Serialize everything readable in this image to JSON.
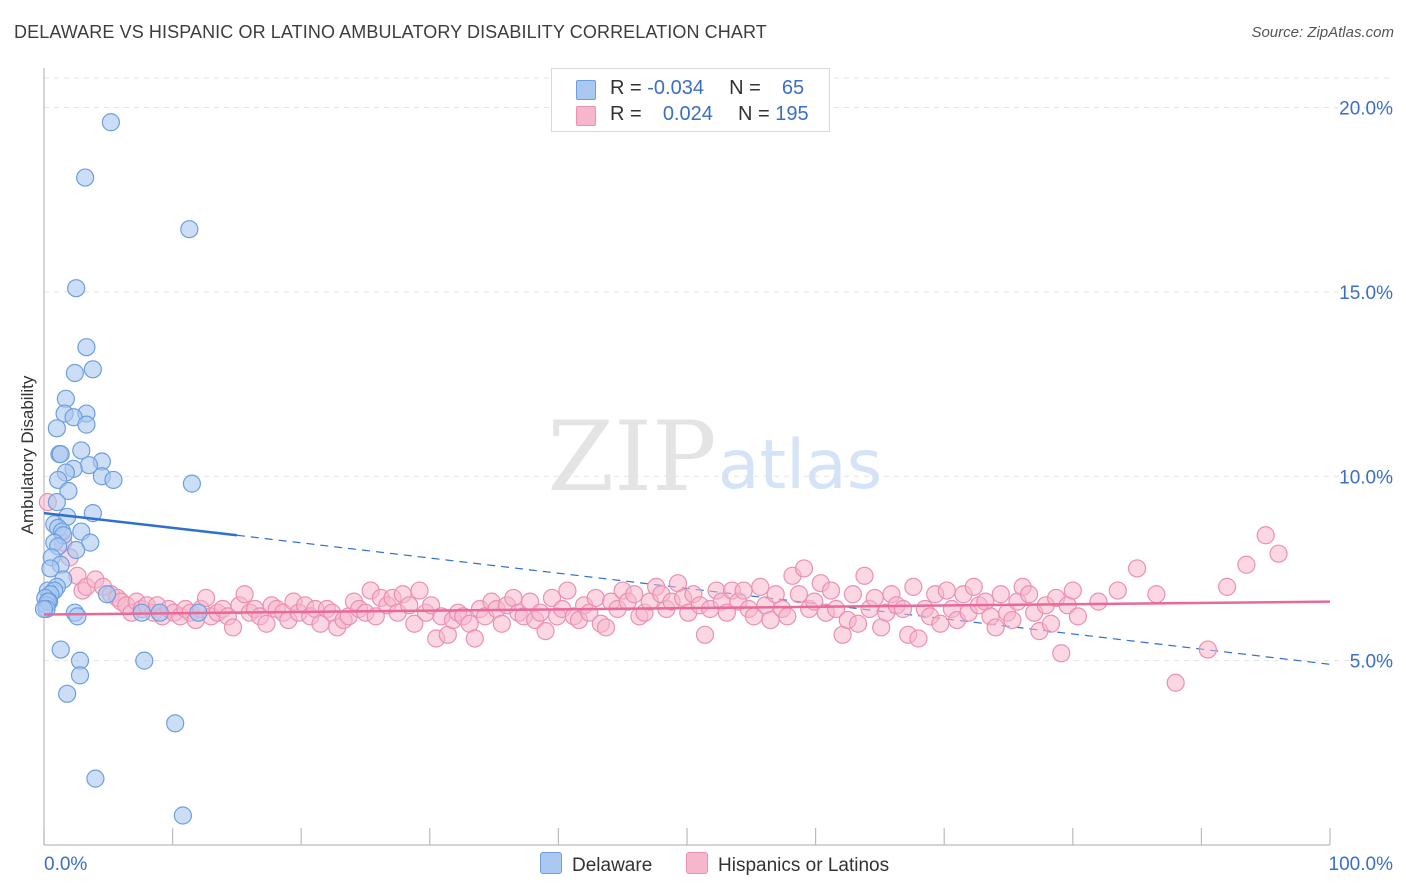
{
  "title": "DELAWARE VS HISPANIC OR LATINO AMBULATORY DISABILITY CORRELATION CHART",
  "source": "Source: ZipAtlas.com",
  "watermark": {
    "zip": "ZIP",
    "atlas": "atlas"
  },
  "legend": {
    "delaware": {
      "r_label": "R =",
      "r_value": "-0.034",
      "n_label": "N =",
      "n_value": "65"
    },
    "hispanic": {
      "r_label": "R =",
      "r_value": "0.024",
      "n_label": "N =",
      "n_value": "195"
    }
  },
  "bottom_legend": {
    "delaware": "Delaware",
    "hispanic": "Hispanics or Latinos"
  },
  "colors": {
    "delaware_fill": "#aac8f0",
    "delaware_stroke": "#6d9ee0",
    "delaware_line": "#2f6fce",
    "hispanic_fill": "#f6b7cc",
    "hispanic_stroke": "#ec8fb0",
    "hispanic_line": "#e8699a",
    "axis_text": "#3a6fc4",
    "grid": "#e3e3e3"
  },
  "chart_data": {
    "type": "scatter",
    "title": "DELAWARE VS HISPANIC OR LATINO AMBULATORY DISABILITY CORRELATION CHART",
    "xlabel": "",
    "ylabel": "Ambulatory Disability",
    "xlim": [
      0,
      100
    ],
    "ylim": [
      0,
      20.8
    ],
    "x_tick_labels": {
      "left": "0.0%",
      "right": "100.0%"
    },
    "y_ticks": [
      {
        "value": 5,
        "label": "5.0%"
      },
      {
        "value": 10,
        "label": "10.0%"
      },
      {
        "value": 15,
        "label": "15.0%"
      },
      {
        "value": 20,
        "label": "20.0%"
      }
    ],
    "series": [
      {
        "name": "Delaware",
        "r": -0.034,
        "n": 65,
        "trend": {
          "x0": 0,
          "y0": 9.0,
          "x1": 15,
          "y1": 8.4,
          "dash_to_x": 100,
          "dash_to_y": 4.9
        },
        "points": [
          [
            5.2,
            19.6
          ],
          [
            3.2,
            18.1
          ],
          [
            11.3,
            16.7
          ],
          [
            2.5,
            15.1
          ],
          [
            3.3,
            13.5
          ],
          [
            3.8,
            12.9
          ],
          [
            2.4,
            12.8
          ],
          [
            1.7,
            12.1
          ],
          [
            1.6,
            11.7
          ],
          [
            3.3,
            11.7
          ],
          [
            2.3,
            11.6
          ],
          [
            3.3,
            11.4
          ],
          [
            1.0,
            11.3
          ],
          [
            2.9,
            10.7
          ],
          [
            1.2,
            10.6
          ],
          [
            1.3,
            10.6
          ],
          [
            4.5,
            10.4
          ],
          [
            3.5,
            10.3
          ],
          [
            2.3,
            10.2
          ],
          [
            1.7,
            10.1
          ],
          [
            4.5,
            10.0
          ],
          [
            5.4,
            9.9
          ],
          [
            1.1,
            9.9
          ],
          [
            11.5,
            9.8
          ],
          [
            1.9,
            9.6
          ],
          [
            1.0,
            9.3
          ],
          [
            3.8,
            9.0
          ],
          [
            1.8,
            8.9
          ],
          [
            0.8,
            8.7
          ],
          [
            1.1,
            8.6
          ],
          [
            1.4,
            8.5
          ],
          [
            2.9,
            8.5
          ],
          [
            1.5,
            8.4
          ],
          [
            0.8,
            8.2
          ],
          [
            3.6,
            8.2
          ],
          [
            1.1,
            8.1
          ],
          [
            2.5,
            8.0
          ],
          [
            0.6,
            7.8
          ],
          [
            1.3,
            7.6
          ],
          [
            0.5,
            7.5
          ],
          [
            1.5,
            7.2
          ],
          [
            1.0,
            7.0
          ],
          [
            0.3,
            6.9
          ],
          [
            0.8,
            6.9
          ],
          [
            4.9,
            6.8
          ],
          [
            0.5,
            6.8
          ],
          [
            0.1,
            6.7
          ],
          [
            0.4,
            6.6
          ],
          [
            0.2,
            6.5
          ],
          [
            0.3,
            6.6
          ],
          [
            0.2,
            6.4
          ],
          [
            0.0,
            6.4
          ],
          [
            9.0,
            6.3
          ],
          [
            2.4,
            6.3
          ],
          [
            2.6,
            6.2
          ],
          [
            7.6,
            6.3
          ],
          [
            12.0,
            6.3
          ],
          [
            1.3,
            5.3
          ],
          [
            7.8,
            5.0
          ],
          [
            2.8,
            5.0
          ],
          [
            2.8,
            4.6
          ],
          [
            1.8,
            4.1
          ],
          [
            10.2,
            3.3
          ],
          [
            4.0,
            1.8
          ],
          [
            10.8,
            0.8
          ]
        ]
      },
      {
        "name": "Hispanics or Latinos",
        "r": 0.024,
        "n": 195,
        "trend": {
          "x0": 0,
          "y0": 6.25,
          "x1": 100,
          "y1": 6.6
        },
        "points": [
          [
            0.3,
            9.3
          ],
          [
            1.5,
            8.2
          ],
          [
            2.0,
            7.8
          ],
          [
            2.6,
            7.3
          ],
          [
            3.0,
            6.9
          ],
          [
            3.3,
            7.0
          ],
          [
            4.0,
            7.2
          ],
          [
            4.6,
            7.0
          ],
          [
            5.2,
            6.8
          ],
          [
            5.7,
            6.7
          ],
          [
            6.0,
            6.6
          ],
          [
            6.4,
            6.5
          ],
          [
            6.8,
            6.3
          ],
          [
            7.2,
            6.6
          ],
          [
            7.6,
            6.4
          ],
          [
            8.0,
            6.5
          ],
          [
            8.5,
            6.3
          ],
          [
            8.8,
            6.5
          ],
          [
            9.2,
            6.2
          ],
          [
            9.7,
            6.4
          ],
          [
            10.1,
            6.3
          ],
          [
            10.6,
            6.2
          ],
          [
            11.0,
            6.4
          ],
          [
            11.4,
            6.3
          ],
          [
            11.8,
            6.1
          ],
          [
            12.2,
            6.4
          ],
          [
            12.6,
            6.7
          ],
          [
            13.0,
            6.2
          ],
          [
            13.5,
            6.3
          ],
          [
            13.9,
            6.4
          ],
          [
            14.3,
            6.2
          ],
          [
            14.7,
            5.9
          ],
          [
            15.2,
            6.5
          ],
          [
            15.6,
            6.8
          ],
          [
            16.0,
            6.3
          ],
          [
            16.4,
            6.4
          ],
          [
            16.8,
            6.2
          ],
          [
            17.3,
            6.0
          ],
          [
            17.7,
            6.5
          ],
          [
            18.1,
            6.4
          ],
          [
            18.6,
            6.3
          ],
          [
            19.0,
            6.1
          ],
          [
            19.4,
            6.6
          ],
          [
            19.8,
            6.3
          ],
          [
            20.3,
            6.5
          ],
          [
            20.7,
            6.2
          ],
          [
            21.1,
            6.4
          ],
          [
            21.5,
            6.0
          ],
          [
            22.0,
            6.4
          ],
          [
            22.4,
            6.3
          ],
          [
            22.8,
            5.9
          ],
          [
            23.3,
            6.1
          ],
          [
            23.7,
            6.2
          ],
          [
            24.1,
            6.6
          ],
          [
            24.5,
            6.4
          ],
          [
            25.0,
            6.3
          ],
          [
            25.4,
            6.9
          ],
          [
            25.8,
            6.2
          ],
          [
            26.2,
            6.7
          ],
          [
            26.7,
            6.5
          ],
          [
            27.1,
            6.7
          ],
          [
            27.5,
            6.3
          ],
          [
            27.9,
            6.8
          ],
          [
            28.4,
            6.5
          ],
          [
            28.8,
            6.0
          ],
          [
            29.2,
            6.9
          ],
          [
            29.7,
            6.3
          ],
          [
            30.1,
            6.5
          ],
          [
            30.5,
            5.6
          ],
          [
            30.9,
            6.2
          ],
          [
            31.4,
            5.7
          ],
          [
            31.8,
            6.1
          ],
          [
            32.2,
            6.3
          ],
          [
            32.6,
            6.2
          ],
          [
            33.1,
            6.0
          ],
          [
            33.5,
            5.6
          ],
          [
            33.9,
            6.4
          ],
          [
            34.3,
            6.2
          ],
          [
            34.8,
            6.6
          ],
          [
            35.2,
            6.4
          ],
          [
            35.6,
            6.0
          ],
          [
            36.0,
            6.5
          ],
          [
            36.5,
            6.7
          ],
          [
            36.9,
            6.3
          ],
          [
            37.3,
            6.2
          ],
          [
            37.8,
            6.6
          ],
          [
            38.2,
            6.1
          ],
          [
            38.6,
            6.3
          ],
          [
            39.0,
            5.8
          ],
          [
            39.5,
            6.7
          ],
          [
            39.9,
            6.2
          ],
          [
            40.3,
            6.4
          ],
          [
            40.7,
            6.9
          ],
          [
            41.2,
            6.2
          ],
          [
            41.6,
            6.1
          ],
          [
            42.0,
            6.5
          ],
          [
            42.4,
            6.3
          ],
          [
            42.9,
            6.7
          ],
          [
            43.3,
            6.0
          ],
          [
            43.7,
            5.9
          ],
          [
            44.1,
            6.6
          ],
          [
            44.6,
            6.4
          ],
          [
            45.0,
            6.9
          ],
          [
            45.4,
            6.6
          ],
          [
            45.9,
            6.8
          ],
          [
            46.3,
            6.2
          ],
          [
            46.7,
            6.3
          ],
          [
            47.1,
            6.6
          ],
          [
            47.6,
            7.0
          ],
          [
            48.0,
            6.8
          ],
          [
            48.4,
            6.4
          ],
          [
            48.8,
            6.6
          ],
          [
            49.3,
            7.1
          ],
          [
            49.7,
            6.7
          ],
          [
            50.1,
            6.3
          ],
          [
            50.5,
            6.8
          ],
          [
            51.0,
            6.5
          ],
          [
            51.4,
            5.7
          ],
          [
            51.8,
            6.4
          ],
          [
            52.3,
            6.9
          ],
          [
            52.7,
            6.6
          ],
          [
            53.1,
            6.3
          ],
          [
            53.5,
            6.9
          ],
          [
            54.0,
            6.6
          ],
          [
            54.4,
            6.9
          ],
          [
            54.8,
            6.4
          ],
          [
            55.2,
            6.2
          ],
          [
            55.7,
            7.0
          ],
          [
            56.1,
            6.5
          ],
          [
            56.5,
            6.1
          ],
          [
            56.9,
            6.8
          ],
          [
            57.4,
            6.4
          ],
          [
            57.8,
            6.2
          ],
          [
            58.2,
            7.3
          ],
          [
            58.7,
            6.8
          ],
          [
            59.1,
            7.5
          ],
          [
            59.5,
            6.4
          ],
          [
            59.9,
            6.6
          ],
          [
            60.4,
            7.1
          ],
          [
            60.8,
            6.3
          ],
          [
            61.2,
            6.9
          ],
          [
            61.6,
            6.4
          ],
          [
            62.1,
            5.7
          ],
          [
            62.5,
            6.1
          ],
          [
            62.9,
            6.8
          ],
          [
            63.3,
            6.0
          ],
          [
            63.8,
            7.3
          ],
          [
            64.2,
            6.4
          ],
          [
            64.6,
            6.7
          ],
          [
            65.1,
            5.9
          ],
          [
            65.5,
            6.3
          ],
          [
            65.9,
            6.8
          ],
          [
            66.3,
            6.5
          ],
          [
            66.8,
            6.4
          ],
          [
            67.2,
            5.7
          ],
          [
            67.6,
            7.0
          ],
          [
            68.0,
            5.6
          ],
          [
            68.5,
            6.4
          ],
          [
            68.9,
            6.2
          ],
          [
            69.3,
            6.8
          ],
          [
            69.7,
            6.0
          ],
          [
            70.2,
            6.9
          ],
          [
            70.6,
            6.4
          ],
          [
            71.0,
            6.1
          ],
          [
            71.5,
            6.8
          ],
          [
            71.9,
            6.3
          ],
          [
            72.3,
            7.0
          ],
          [
            72.7,
            6.5
          ],
          [
            73.2,
            6.6
          ],
          [
            73.6,
            6.2
          ],
          [
            74.0,
            5.9
          ],
          [
            74.4,
            6.8
          ],
          [
            74.9,
            6.3
          ],
          [
            75.3,
            6.1
          ],
          [
            75.7,
            6.6
          ],
          [
            76.1,
            7.0
          ],
          [
            76.6,
            6.8
          ],
          [
            77.0,
            6.3
          ],
          [
            77.4,
            5.8
          ],
          [
            77.9,
            6.5
          ],
          [
            78.3,
            6.0
          ],
          [
            78.7,
            6.7
          ],
          [
            79.1,
            5.2
          ],
          [
            79.6,
            6.5
          ],
          [
            80.0,
            6.9
          ],
          [
            80.4,
            6.2
          ],
          [
            82.0,
            6.6
          ],
          [
            83.5,
            6.9
          ],
          [
            85.0,
            7.5
          ],
          [
            86.5,
            6.8
          ],
          [
            88.0,
            4.4
          ],
          [
            90.5,
            5.3
          ],
          [
            92.0,
            7.0
          ],
          [
            93.5,
            7.6
          ],
          [
            95.0,
            8.4
          ],
          [
            96.0,
            7.9
          ]
        ]
      }
    ]
  }
}
